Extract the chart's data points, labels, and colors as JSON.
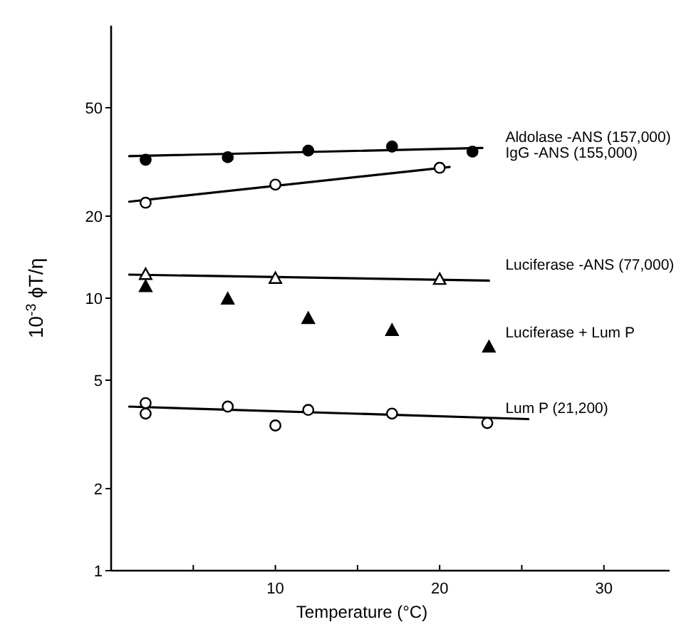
{
  "chart_data": {
    "type": "scatter",
    "xlabel": "Temperature (°C)",
    "ylabel": "10$^{-3}$ ϕT/η",
    "log": "y",
    "grid": false,
    "legend": false,
    "xlim": [
      0,
      34
    ],
    "xticks": [
      {
        "value": 5,
        "label": null
      },
      10,
      {
        "value": 15,
        "label": null
      },
      20,
      {
        "value": 25,
        "label": null
      },
      30
    ],
    "ylim": [
      1,
      100
    ],
    "yticks": [
      1,
      2,
      5,
      10,
      20,
      50
    ],
    "series": [
      {
        "type": "line",
        "color": "#000000",
        "x": [
          1.1,
          22.6
        ],
        "values": [
          33.2,
          35.6
        ]
      },
      {
        "type": "line",
        "color": "#000000",
        "x": [
          1.1,
          20.6
        ],
        "values": [
          22.6,
          30.3
        ]
      },
      {
        "type": "line",
        "color": "#000000",
        "x": [
          1.1,
          23
        ],
        "values": [
          12.2,
          11.6
        ]
      },
      {
        "type": "line",
        "color": "#000000",
        "x": [
          1.1,
          25.4
        ],
        "values": [
          4.0,
          3.6
        ]
      },
      {
        "name": "Aldolase -ANS (157,000)",
        "color": "#000000",
        "marker": "circle",
        "x": [
          2.1,
          7.1,
          12,
          17.1,
          22
        ],
        "values": [
          32.2,
          32.9,
          34.8,
          36,
          34.5
        ]
      },
      {
        "name": "IgG -ANS (155,000)",
        "color": "#ffffff",
        "marker": "circle",
        "x": [
          2.1,
          10,
          20
        ],
        "values": [
          22.4,
          26.1,
          30.1
        ]
      },
      {
        "name": "Luciferase -ANS (77,000)",
        "color": "#ffffff",
        "marker": "triangle",
        "x": [
          2.1,
          10,
          20
        ],
        "values": [
          12.2,
          11.8,
          11.7
        ]
      },
      {
        "name": "Luciferase + Lum P",
        "color": "#000000",
        "marker": "triangle",
        "x": [
          2.1,
          7.1,
          12,
          17.1,
          23
        ],
        "values": [
          11,
          9.9,
          8.4,
          7.6,
          6.6
        ]
      },
      {
        "name": "Lum P (21,200)",
        "color": "#ffffff",
        "marker": "circle",
        "x": [
          2.1,
          2.1,
          7.1,
          10,
          12,
          17.1,
          22.9
        ],
        "values": [
          4.12,
          3.77,
          4.0,
          3.41,
          3.89,
          3.77,
          3.48
        ]
      }
    ]
  }
}
